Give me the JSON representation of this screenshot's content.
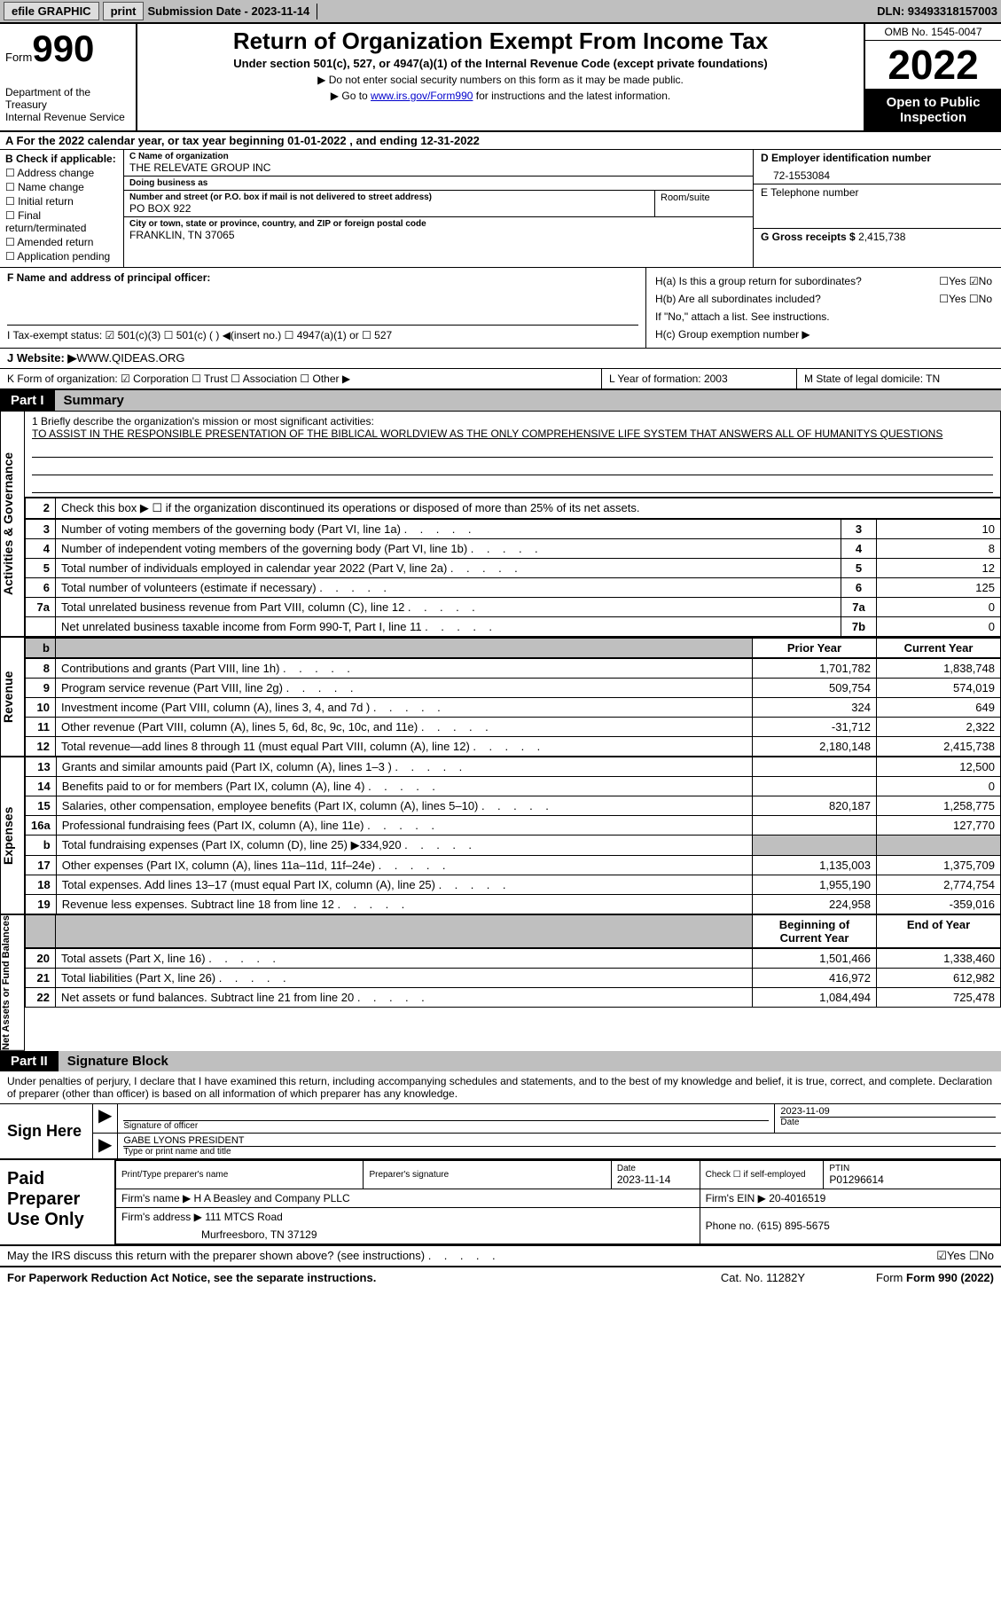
{
  "topbar": {
    "efile": "efile GRAPHIC",
    "print": "print",
    "submission": "Submission Date - 2023-11-14",
    "dln": "DLN: 93493318157003"
  },
  "header": {
    "form_label": "Form",
    "form_num": "990",
    "dept": "Department of the Treasury",
    "irs": "Internal Revenue Service",
    "title": "Return of Organization Exempt From Income Tax",
    "sub1": "Under section 501(c), 527, or 4947(a)(1) of the Internal Revenue Code (except private foundations)",
    "sub2a": "▶ Do not enter social security numbers on this form as it may be made public.",
    "sub2b_pre": "▶ Go to ",
    "sub2b_link": "www.irs.gov/Form990",
    "sub2b_post": " for instructions and the latest information.",
    "omb": "OMB No. 1545-0047",
    "year": "2022",
    "inspect": "Open to Public Inspection"
  },
  "rowA": "A  For the 2022 calendar year, or tax year beginning 01-01-2022    , and ending 12-31-2022",
  "checkB": {
    "label": "B Check if applicable:",
    "items": [
      "☐ Address change",
      "☐ Name change",
      "☐ Initial return",
      "☐ Final return/terminated",
      "☐ Amended return",
      "☐ Application pending"
    ]
  },
  "boxC": {
    "name_lbl": "C Name of organization",
    "name": "THE RELEVATE GROUP INC",
    "dba_lbl": "Doing business as",
    "dba": "",
    "addr_lbl": "Number and street (or P.O. box if mail is not delivered to street address)",
    "addr": "PO BOX 922",
    "room_lbl": "Room/suite",
    "city_lbl": "City or town, state or province, country, and ZIP or foreign postal code",
    "city": "FRANKLIN, TN  37065"
  },
  "boxDE": {
    "d_lbl": "D Employer identification number",
    "d_val": "72-1553084",
    "e_lbl": "E Telephone number",
    "e_val": "",
    "g_lbl": "G Gross receipts $ ",
    "g_val": "2,415,738"
  },
  "boxF": "F Name and address of principal officer:",
  "boxH": {
    "ha": "H(a)  Is this a group return for subordinates?",
    "ha_ans": "☐Yes ☑No",
    "hb": "H(b)  Are all subordinates included?",
    "hb_ans": "☐Yes ☐No",
    "hb_note": "If \"No,\" attach a list. See instructions.",
    "hc": "H(c)  Group exemption number ▶"
  },
  "boxI": "I   Tax-exempt status:   ☑ 501(c)(3)   ☐ 501(c) (  ) ◀(insert no.)   ☐ 4947(a)(1) or  ☐ 527",
  "boxJ_lbl": "J  Website: ▶ ",
  "boxJ_val": "WWW.QIDEAS.ORG",
  "boxK": "K Form of organization:  ☑ Corporation  ☐ Trust  ☐ Association  ☐ Other ▶",
  "boxL": "L Year of formation: 2003",
  "boxM": "M State of legal domicile: TN",
  "part1": {
    "num": "Part I",
    "title": "Summary"
  },
  "summary": {
    "line1_lbl": "1  Briefly describe the organization's mission or most significant activities:",
    "line1_val": "TO ASSIST IN THE RESPONSIBLE PRESENTATION OF THE BIBLICAL WORLDVIEW AS THE ONLY COMPREHENSIVE LIFE SYSTEM THAT ANSWERS ALL OF HUMANITYS QUESTIONS",
    "line2": "Check this box ▶ ☐  if the organization discontinued its operations or disposed of more than 25% of its net assets.",
    "hdr_prior": "Prior Year",
    "hdr_curr": "Current Year",
    "hdr_begin": "Beginning of Current Year",
    "hdr_end": "End of Year",
    "rows_gov": [
      {
        "n": "3",
        "d": "Number of voting members of the governing body (Part VI, line 1a)",
        "box": "3",
        "v": "10"
      },
      {
        "n": "4",
        "d": "Number of independent voting members of the governing body (Part VI, line 1b)",
        "box": "4",
        "v": "8"
      },
      {
        "n": "5",
        "d": "Total number of individuals employed in calendar year 2022 (Part V, line 2a)",
        "box": "5",
        "v": "12"
      },
      {
        "n": "6",
        "d": "Total number of volunteers (estimate if necessary)",
        "box": "6",
        "v": "125"
      },
      {
        "n": "7a",
        "d": "Total unrelated business revenue from Part VIII, column (C), line 12",
        "box": "7a",
        "v": "0"
      },
      {
        "n": "",
        "d": "Net unrelated business taxable income from Form 990-T, Part I, line 11",
        "box": "7b",
        "v": "0"
      }
    ],
    "rows_rev": [
      {
        "n": "8",
        "d": "Contributions and grants (Part VIII, line 1h)",
        "p": "1,701,782",
        "c": "1,838,748"
      },
      {
        "n": "9",
        "d": "Program service revenue (Part VIII, line 2g)",
        "p": "509,754",
        "c": "574,019"
      },
      {
        "n": "10",
        "d": "Investment income (Part VIII, column (A), lines 3, 4, and 7d )",
        "p": "324",
        "c": "649"
      },
      {
        "n": "11",
        "d": "Other revenue (Part VIII, column (A), lines 5, 6d, 8c, 9c, 10c, and 11e)",
        "p": "-31,712",
        "c": "2,322"
      },
      {
        "n": "12",
        "d": "Total revenue—add lines 8 through 11 (must equal Part VIII, column (A), line 12)",
        "p": "2,180,148",
        "c": "2,415,738"
      }
    ],
    "rows_exp": [
      {
        "n": "13",
        "d": "Grants and similar amounts paid (Part IX, column (A), lines 1–3 )",
        "p": "",
        "c": "12,500"
      },
      {
        "n": "14",
        "d": "Benefits paid to or for members (Part IX, column (A), line 4)",
        "p": "",
        "c": "0"
      },
      {
        "n": "15",
        "d": "Salaries, other compensation, employee benefits (Part IX, column (A), lines 5–10)",
        "p": "820,187",
        "c": "1,258,775"
      },
      {
        "n": "16a",
        "d": "Professional fundraising fees (Part IX, column (A), line 11e)",
        "p": "",
        "c": "127,770"
      },
      {
        "n": "b",
        "d": "Total fundraising expenses (Part IX, column (D), line 25) ▶334,920",
        "p": "shaded",
        "c": "shaded"
      },
      {
        "n": "17",
        "d": "Other expenses (Part IX, column (A), lines 11a–11d, 11f–24e)",
        "p": "1,135,003",
        "c": "1,375,709"
      },
      {
        "n": "18",
        "d": "Total expenses. Add lines 13–17 (must equal Part IX, column (A), line 25)",
        "p": "1,955,190",
        "c": "2,774,754"
      },
      {
        "n": "19",
        "d": "Revenue less expenses. Subtract line 18 from line 12",
        "p": "224,958",
        "c": "-359,016"
      }
    ],
    "rows_net": [
      {
        "n": "20",
        "d": "Total assets (Part X, line 16)",
        "p": "1,501,466",
        "c": "1,338,460"
      },
      {
        "n": "21",
        "d": "Total liabilities (Part X, line 26)",
        "p": "416,972",
        "c": "612,982"
      },
      {
        "n": "22",
        "d": "Net assets or fund balances. Subtract line 21 from line 20",
        "p": "1,084,494",
        "c": "725,478"
      }
    ],
    "side_gov": "Activities & Governance",
    "side_rev": "Revenue",
    "side_exp": "Expenses",
    "side_net": "Net Assets or Fund Balances"
  },
  "part2": {
    "num": "Part II",
    "title": "Signature Block"
  },
  "part2_text": "Under penalties of perjury, I declare that I have examined this return, including accompanying schedules and statements, and to the best of my knowledge and belief, it is true, correct, and complete. Declaration of preparer (other than officer) is based on all information of which preparer has any knowledge.",
  "sign": {
    "left": "Sign Here",
    "date": "2023-11-09",
    "sig_hint": "Signature of officer",
    "date_hint": "Date",
    "name": "GABE LYONS  PRESIDENT",
    "name_hint": "Type or print name and title"
  },
  "prep": {
    "left": "Paid Preparer Use Only",
    "h1": "Print/Type preparer's name",
    "h2": "Preparer's signature",
    "h3_lbl": "Date",
    "h3": "2023-11-14",
    "h4": "Check ☐ if self-employed",
    "h5_lbl": "PTIN",
    "h5": "P01296614",
    "firm_lbl": "Firm's name    ▶ ",
    "firm": "H A Beasley and Company PLLC",
    "ein_lbl": "Firm's EIN ▶ ",
    "ein": "20-4016519",
    "addr_lbl": "Firm's address ▶ ",
    "addr": "111 MTCS Road",
    "addr2": "Murfreesboro, TN  37129",
    "phone_lbl": "Phone no. ",
    "phone": "(615) 895-5675"
  },
  "discuss": "May the IRS discuss this return with the preparer shown above? (see instructions)",
  "discuss_ans": "☑Yes ☐No",
  "footer": {
    "pra": "For Paperwork Reduction Act Notice, see the separate instructions.",
    "cat": "Cat. No. 11282Y",
    "form": "Form 990 (2022)"
  }
}
